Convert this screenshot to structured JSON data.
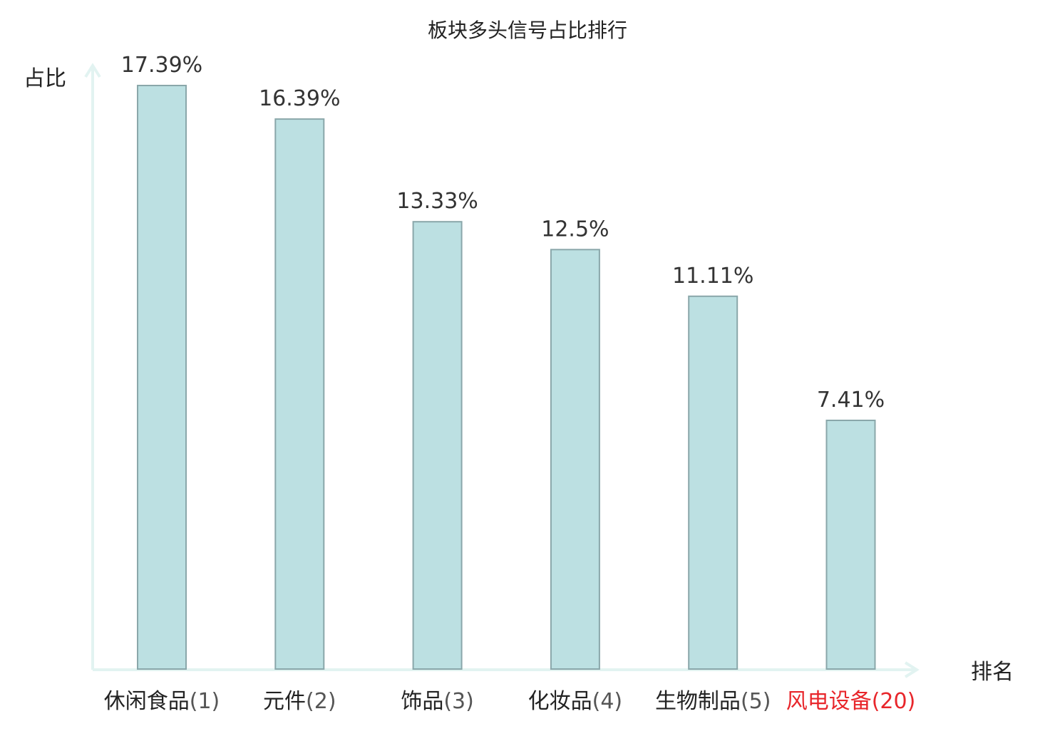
{
  "chart_data": {
    "type": "bar",
    "title": "板块多头信号占比排行",
    "ylabel": "占比",
    "xlabel": "排名",
    "ylim": [
      0,
      17.39
    ],
    "grid": false,
    "legend": "none",
    "categories": [
      {
        "name": "休闲食品",
        "rank": "(1)",
        "highlight": false
      },
      {
        "name": "元件",
        "rank": "(2)",
        "highlight": false
      },
      {
        "name": "饰品",
        "rank": "(3)",
        "highlight": false
      },
      {
        "name": "化妆品",
        "rank": "(4)",
        "highlight": false
      },
      {
        "name": "生物制品",
        "rank": "(5)",
        "highlight": false
      },
      {
        "name": "风电设备",
        "rank": "(20)",
        "highlight": true
      }
    ],
    "values": [
      17.39,
      16.39,
      13.33,
      12.5,
      11.11,
      7.41
    ],
    "value_labels": [
      "17.39%",
      "16.39%",
      "13.33%",
      "12.5%",
      "11.11%",
      "7.41%"
    ],
    "colors": {
      "bar_fill": "#bce0e2",
      "bar_stroke": "#8aa7aa",
      "axis": "#e2f3f1",
      "label_name": "#222222",
      "label_rank": "#555555",
      "highlight": "#e8262b"
    }
  }
}
